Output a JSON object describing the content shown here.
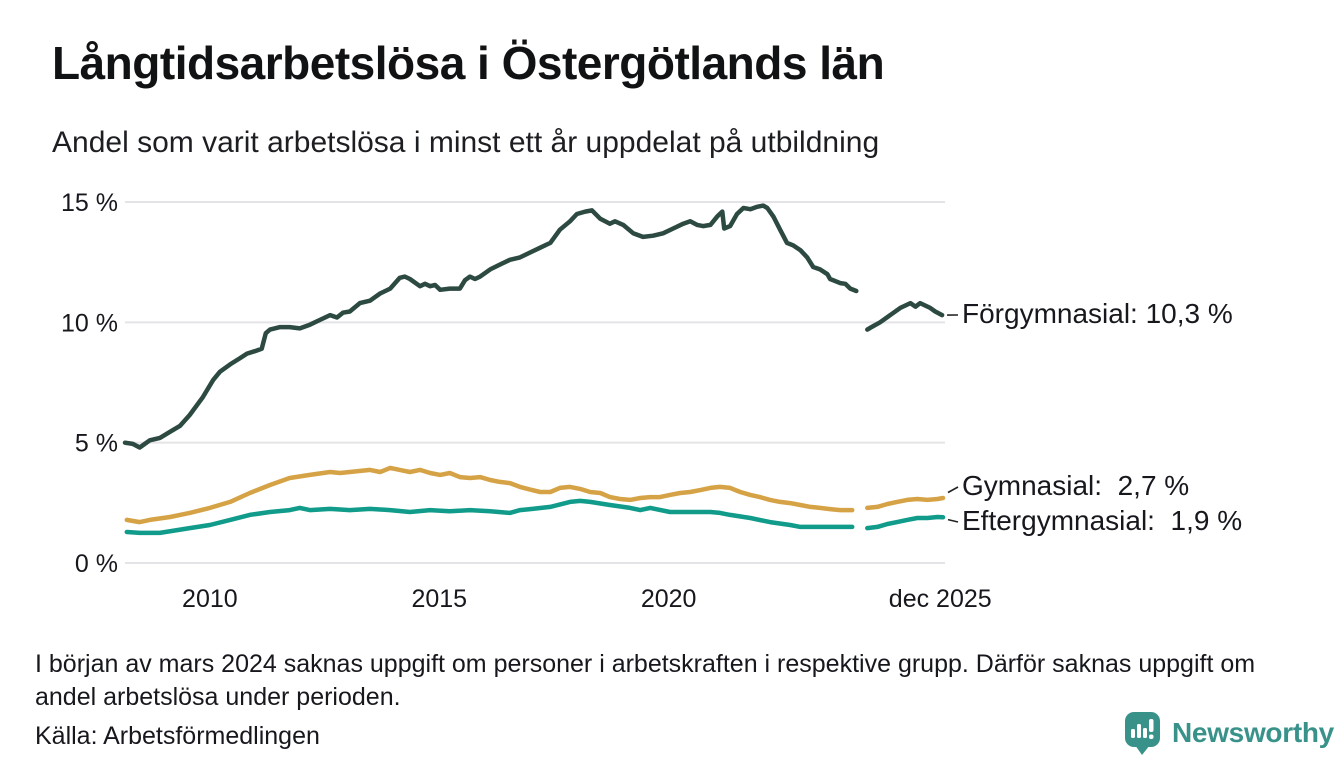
{
  "header": {
    "title": "Långtidsarbetslösa i Östergötlands län",
    "subtitle": "Andel som varit arbetslösa i minst ett år uppdelat på utbildning"
  },
  "chart_data": {
    "type": "line",
    "title": "Långtidsarbetslösa i Östergötlands län",
    "subtitle": "Andel som varit arbetslösa i minst ett år uppdelat på utbildning",
    "x_axis": {
      "range": [
        2008.15,
        2025.98
      ],
      "ticks": [
        {
          "label": "2010",
          "value": 2010
        },
        {
          "label": "2015",
          "value": 2015
        },
        {
          "label": "2020",
          "value": 2020
        },
        {
          "label": "dec 2025",
          "value": 2025.92
        }
      ]
    },
    "y_axis": {
      "range": [
        0,
        15
      ],
      "unit": "%",
      "ticks": [
        {
          "label": "0 %",
          "value": 0
        },
        {
          "label": "5 %",
          "value": 5
        },
        {
          "label": "10 %",
          "value": 10
        },
        {
          "label": "15 %",
          "value": 15
        }
      ],
      "grid": true
    },
    "legend_position": "right-of-line-ends",
    "data_gap": {
      "from": 2024.1,
      "to": 2024.3,
      "reason": "uppgift saknas i början av mars 2024"
    },
    "series": [
      {
        "name": "Förgymnasial",
        "label": "Förgymnasial: 10,3 %",
        "last_value": "10,3 %",
        "color": "#2d4a42",
        "segments": [
          [
            [
              2008.15,
              5.0
            ],
            [
              2008.32,
              4.95
            ],
            [
              2008.47,
              4.8
            ],
            [
              2008.69,
              5.1
            ],
            [
              2008.91,
              5.2
            ],
            [
              2009.13,
              5.45
            ],
            [
              2009.35,
              5.7
            ],
            [
              2009.56,
              6.15
            ],
            [
              2009.85,
              6.9
            ],
            [
              2010.07,
              7.6
            ],
            [
              2010.22,
              7.95
            ],
            [
              2010.44,
              8.25
            ],
            [
              2010.65,
              8.5
            ],
            [
              2010.81,
              8.7
            ],
            [
              2010.98,
              8.8
            ],
            [
              2011.13,
              8.9
            ],
            [
              2011.22,
              9.55
            ],
            [
              2011.31,
              9.7
            ],
            [
              2011.53,
              9.8
            ],
            [
              2011.74,
              9.8
            ],
            [
              2011.96,
              9.75
            ],
            [
              2012.18,
              9.9
            ],
            [
              2012.4,
              10.1
            ],
            [
              2012.62,
              10.3
            ],
            [
              2012.77,
              10.2
            ],
            [
              2012.9,
              10.4
            ],
            [
              2013.05,
              10.45
            ],
            [
              2013.27,
              10.8
            ],
            [
              2013.49,
              10.9
            ],
            [
              2013.71,
              11.2
            ],
            [
              2013.93,
              11.4
            ],
            [
              2014.14,
              11.85
            ],
            [
              2014.25,
              11.9
            ],
            [
              2014.36,
              11.8
            ],
            [
              2014.58,
              11.5
            ],
            [
              2014.69,
              11.6
            ],
            [
              2014.8,
              11.5
            ],
            [
              2014.91,
              11.55
            ],
            [
              2015.02,
              11.35
            ],
            [
              2015.23,
              11.4
            ],
            [
              2015.45,
              11.4
            ],
            [
              2015.56,
              11.75
            ],
            [
              2015.67,
              11.9
            ],
            [
              2015.78,
              11.8
            ],
            [
              2015.89,
              11.9
            ],
            [
              2016.11,
              12.2
            ],
            [
              2016.32,
              12.4
            ],
            [
              2016.54,
              12.6
            ],
            [
              2016.76,
              12.7
            ],
            [
              2016.98,
              12.9
            ],
            [
              2017.2,
              13.1
            ],
            [
              2017.42,
              13.3
            ],
            [
              2017.63,
              13.85
            ],
            [
              2017.85,
              14.2
            ],
            [
              2018.0,
              14.5
            ],
            [
              2018.18,
              14.6
            ],
            [
              2018.33,
              14.65
            ],
            [
              2018.51,
              14.3
            ],
            [
              2018.72,
              14.1
            ],
            [
              2018.83,
              14.2
            ],
            [
              2019.01,
              14.05
            ],
            [
              2019.23,
              13.7
            ],
            [
              2019.44,
              13.55
            ],
            [
              2019.66,
              13.6
            ],
            [
              2019.88,
              13.7
            ],
            [
              2020.1,
              13.9
            ],
            [
              2020.32,
              14.1
            ],
            [
              2020.47,
              14.2
            ],
            [
              2020.62,
              14.05
            ],
            [
              2020.75,
              14.0
            ],
            [
              2020.91,
              14.05
            ],
            [
              2021.06,
              14.4
            ],
            [
              2021.17,
              14.6
            ],
            [
              2021.21,
              13.9
            ],
            [
              2021.34,
              14.0
            ],
            [
              2021.49,
              14.5
            ],
            [
              2021.63,
              14.75
            ],
            [
              2021.78,
              14.7
            ],
            [
              2021.93,
              14.8
            ],
            [
              2022.06,
              14.85
            ],
            [
              2022.15,
              14.75
            ],
            [
              2022.28,
              14.4
            ],
            [
              2022.43,
              13.85
            ],
            [
              2022.58,
              13.3
            ],
            [
              2022.71,
              13.2
            ],
            [
              2022.87,
              13.0
            ],
            [
              2023.02,
              12.7
            ],
            [
              2023.15,
              12.3
            ],
            [
              2023.3,
              12.2
            ],
            [
              2023.46,
              12.0
            ],
            [
              2023.52,
              11.8
            ],
            [
              2023.74,
              11.63
            ],
            [
              2023.85,
              11.6
            ],
            [
              2023.96,
              11.4
            ],
            [
              2024.09,
              11.3
            ]
          ],
          [
            [
              2024.33,
              9.7
            ],
            [
              2024.39,
              9.77
            ],
            [
              2024.61,
              10.0
            ],
            [
              2024.83,
              10.3
            ],
            [
              2025.05,
              10.6
            ],
            [
              2025.16,
              10.7
            ],
            [
              2025.27,
              10.8
            ],
            [
              2025.38,
              10.65
            ],
            [
              2025.48,
              10.8
            ],
            [
              2025.59,
              10.7
            ],
            [
              2025.7,
              10.6
            ],
            [
              2025.81,
              10.45
            ],
            [
              2025.96,
              10.3
            ]
          ]
        ]
      },
      {
        "name": "Gymnasial",
        "label": "Gymnasial:  2,7 %",
        "last_value": "2,7 %",
        "color": "#d6a246",
        "segments": [
          [
            [
              2008.19,
              1.79
            ],
            [
              2008.47,
              1.7
            ],
            [
              2008.69,
              1.79
            ],
            [
              2009.13,
              1.91
            ],
            [
              2009.56,
              2.08
            ],
            [
              2010.0,
              2.29
            ],
            [
              2010.44,
              2.54
            ],
            [
              2010.87,
              2.91
            ],
            [
              2011.31,
              3.24
            ],
            [
              2011.74,
              3.53
            ],
            [
              2012.18,
              3.66
            ],
            [
              2012.62,
              3.78
            ],
            [
              2012.84,
              3.74
            ],
            [
              2013.05,
              3.78
            ],
            [
              2013.49,
              3.87
            ],
            [
              2013.71,
              3.78
            ],
            [
              2013.93,
              3.95
            ],
            [
              2014.14,
              3.87
            ],
            [
              2014.36,
              3.78
            ],
            [
              2014.58,
              3.87
            ],
            [
              2014.8,
              3.74
            ],
            [
              2015.02,
              3.66
            ],
            [
              2015.23,
              3.74
            ],
            [
              2015.45,
              3.57
            ],
            [
              2015.67,
              3.53
            ],
            [
              2015.89,
              3.57
            ],
            [
              2016.11,
              3.45
            ],
            [
              2016.32,
              3.37
            ],
            [
              2016.54,
              3.32
            ],
            [
              2016.76,
              3.16
            ],
            [
              2016.98,
              3.05
            ],
            [
              2017.2,
              2.95
            ],
            [
              2017.42,
              2.95
            ],
            [
              2017.63,
              3.12
            ],
            [
              2017.85,
              3.16
            ],
            [
              2018.07,
              3.08
            ],
            [
              2018.29,
              2.95
            ],
            [
              2018.51,
              2.91
            ],
            [
              2018.72,
              2.74
            ],
            [
              2018.94,
              2.66
            ],
            [
              2019.16,
              2.62
            ],
            [
              2019.38,
              2.7
            ],
            [
              2019.6,
              2.74
            ],
            [
              2019.81,
              2.74
            ],
            [
              2020.03,
              2.83
            ],
            [
              2020.25,
              2.91
            ],
            [
              2020.47,
              2.95
            ],
            [
              2020.69,
              3.03
            ],
            [
              2020.91,
              3.12
            ],
            [
              2021.12,
              3.16
            ],
            [
              2021.34,
              3.12
            ],
            [
              2021.56,
              2.95
            ],
            [
              2021.78,
              2.83
            ],
            [
              2021.99,
              2.74
            ],
            [
              2022.21,
              2.62
            ],
            [
              2022.43,
              2.54
            ],
            [
              2022.65,
              2.49
            ],
            [
              2022.87,
              2.41
            ],
            [
              2023.09,
              2.33
            ],
            [
              2023.3,
              2.29
            ],
            [
              2023.52,
              2.24
            ],
            [
              2023.74,
              2.2
            ],
            [
              2024.0,
              2.2
            ]
          ],
          [
            [
              2024.33,
              2.29
            ],
            [
              2024.55,
              2.33
            ],
            [
              2024.77,
              2.45
            ],
            [
              2024.98,
              2.54
            ],
            [
              2025.2,
              2.62
            ],
            [
              2025.42,
              2.66
            ],
            [
              2025.64,
              2.62
            ],
            [
              2025.86,
              2.66
            ],
            [
              2025.98,
              2.7
            ]
          ]
        ]
      },
      {
        "name": "Eftergymnasial",
        "label": "Eftergymnasial:  1,9 %",
        "last_value": "1,9 %",
        "color": "#109b8a",
        "segments": [
          [
            [
              2008.19,
              1.29
            ],
            [
              2008.47,
              1.25
            ],
            [
              2008.91,
              1.25
            ],
            [
              2009.56,
              1.45
            ],
            [
              2010.0,
              1.58
            ],
            [
              2010.44,
              1.79
            ],
            [
              2010.87,
              2.0
            ],
            [
              2011.31,
              2.12
            ],
            [
              2011.74,
              2.2
            ],
            [
              2011.96,
              2.29
            ],
            [
              2012.18,
              2.2
            ],
            [
              2012.62,
              2.25
            ],
            [
              2013.05,
              2.2
            ],
            [
              2013.49,
              2.25
            ],
            [
              2013.93,
              2.2
            ],
            [
              2014.36,
              2.12
            ],
            [
              2014.8,
              2.2
            ],
            [
              2015.23,
              2.15
            ],
            [
              2015.67,
              2.2
            ],
            [
              2016.11,
              2.15
            ],
            [
              2016.54,
              2.08
            ],
            [
              2016.76,
              2.2
            ],
            [
              2016.98,
              2.24
            ],
            [
              2017.42,
              2.33
            ],
            [
              2017.85,
              2.54
            ],
            [
              2018.07,
              2.58
            ],
            [
              2018.29,
              2.54
            ],
            [
              2018.72,
              2.41
            ],
            [
              2019.16,
              2.29
            ],
            [
              2019.38,
              2.2
            ],
            [
              2019.6,
              2.29
            ],
            [
              2020.03,
              2.12
            ],
            [
              2020.47,
              2.12
            ],
            [
              2020.91,
              2.12
            ],
            [
              2021.12,
              2.08
            ],
            [
              2021.34,
              2.0
            ],
            [
              2021.78,
              1.87
            ],
            [
              2022.21,
              1.7
            ],
            [
              2022.65,
              1.58
            ],
            [
              2022.87,
              1.5
            ],
            [
              2023.3,
              1.5
            ],
            [
              2023.74,
              1.5
            ],
            [
              2024.0,
              1.5
            ]
          ],
          [
            [
              2024.33,
              1.45
            ],
            [
              2024.55,
              1.5
            ],
            [
              2024.77,
              1.62
            ],
            [
              2024.98,
              1.7
            ],
            [
              2025.2,
              1.79
            ],
            [
              2025.42,
              1.87
            ],
            [
              2025.64,
              1.87
            ],
            [
              2025.86,
              1.91
            ],
            [
              2025.98,
              1.9
            ]
          ]
        ]
      }
    ],
    "colors": {
      "grid": "#e4e4e8",
      "text": "#16181d",
      "forgymnasial": "#2d4a42",
      "gymnasial": "#d6a246",
      "eftergymnasial": "#109b8a"
    }
  },
  "footer": {
    "note_line1": "I början av mars 2024 saknas uppgift om personer i arbetskraften i respektive grupp. Därför saknas uppgift om",
    "note_line2": "andel arbetslösa under perioden.",
    "source": "Källa: Arbetsförmedlingen",
    "brand": "Newsworthy",
    "brand_color": "#38928a"
  }
}
